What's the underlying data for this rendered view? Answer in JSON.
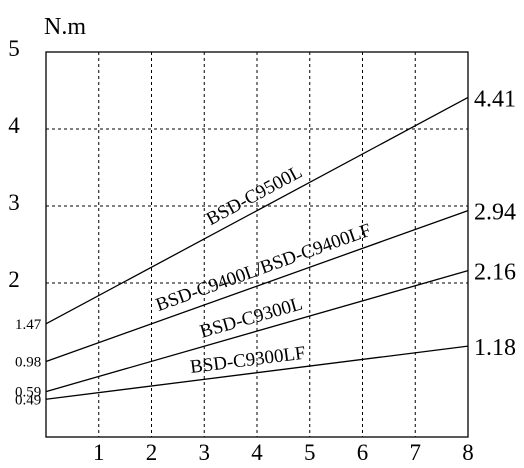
{
  "chart_data": {
    "type": "line",
    "ylabel": "N.m",
    "xlim": [
      0,
      8
    ],
    "ylim": [
      0,
      5
    ],
    "x_ticks": [
      "1",
      "2",
      "3",
      "4",
      "5",
      "6",
      "7",
      "8"
    ],
    "y_ticks": [
      "2",
      "3",
      "4",
      "5"
    ],
    "y_start_ticks": [
      "0.49",
      "0.59",
      "0.98",
      "1.47"
    ],
    "grid": true,
    "series": [
      {
        "name": "BSD-C9500L",
        "x": [
          0,
          8
        ],
        "y": [
          1.47,
          4.41
        ],
        "end_label": "4.41"
      },
      {
        "name": "BSD-C9400L/BSD-C9400LF",
        "x": [
          0,
          8
        ],
        "y": [
          0.98,
          2.94
        ],
        "end_label": "2.94"
      },
      {
        "name": "BSD-C9300L",
        "x": [
          0,
          8
        ],
        "y": [
          0.59,
          2.16
        ],
        "end_label": "2.16"
      },
      {
        "name": "BSD-C9300LF",
        "x": [
          0,
          8
        ],
        "y": [
          0.49,
          1.18
        ],
        "end_label": "1.18"
      }
    ]
  }
}
